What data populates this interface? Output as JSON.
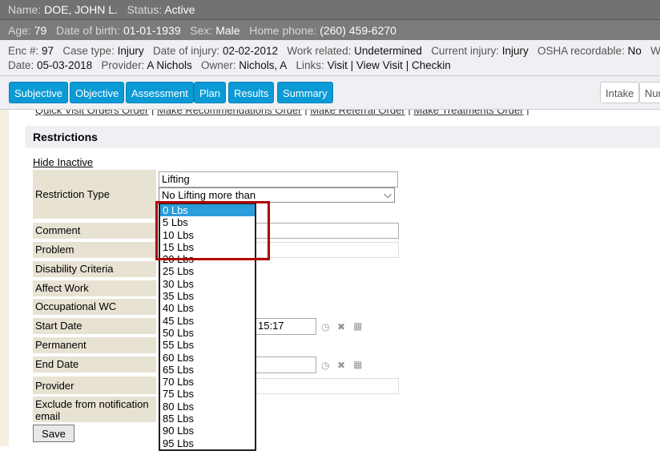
{
  "patient": {
    "name_label": "Name:",
    "name": "DOE, JOHN L.",
    "status_label": "Status:",
    "status": "Active",
    "age_label": "Age:",
    "age": "79",
    "dob_label": "Date of birth:",
    "dob": "01-01-1939",
    "sex_label": "Sex:",
    "sex": "Male",
    "phone_label": "Home phone:",
    "phone": "(260) 459-6270"
  },
  "encounter": {
    "enc_label": "Enc #:",
    "enc": "97",
    "case_label": "Case type:",
    "case": "Injury",
    "doi_label": "Date of injury:",
    "doi": "02-02-2012",
    "work_label": "Work related:",
    "work": "Undetermined",
    "cur_label": "Current injury:",
    "cur": "Injury",
    "osha_label": "OSHA recordable:",
    "osha": "No",
    "wc_label": "WC s",
    "date_label": "Date:",
    "date": "05-03-2018",
    "prov_label": "Provider:",
    "prov": "A Nichols",
    "owner_label": "Owner:",
    "owner": "Nichols, A",
    "links_label": "Links:",
    "links": [
      "Visit",
      "View Visit",
      "Checkin"
    ]
  },
  "tabs": [
    "Subjective",
    "Objective",
    "Assessment",
    "Plan",
    "Results",
    "Summary"
  ],
  "right_buttons": [
    "Intake",
    "Nur"
  ],
  "order_links": [
    "Quick Visit Orders Order",
    "Make Recommendations Order",
    "Make Referral Order",
    "Make Treatments Order"
  ],
  "section_title": "Restrictions",
  "hide_inactive": "Hide Inactive",
  "fields": {
    "restriction_type": "Restriction Type",
    "comment": "Comment",
    "problem": "Problem",
    "disability": "Disability Criteria",
    "affect": "Affect Work",
    "occupational": "Occupational WC",
    "start": "Start Date",
    "permanent": "Permanent",
    "end": "End Date",
    "provider": "Provider",
    "exclude": "Exclude from notification email"
  },
  "values": {
    "restriction_text": "Lifting",
    "restriction_select": "No Lifting more than",
    "start_time": "15:17"
  },
  "dropdown_options": [
    "0 Lbs",
    "5 Lbs",
    "10 Lbs",
    "15 Lbs",
    "20 Lbs",
    "25 Lbs",
    "30 Lbs",
    "35 Lbs",
    "40 Lbs",
    "45 Lbs",
    "50 Lbs",
    "55 Lbs",
    "60 Lbs",
    "65 Lbs",
    "70 Lbs",
    "75 Lbs",
    "80 Lbs",
    "85 Lbs",
    "90 Lbs",
    "95 Lbs"
  ],
  "selected_option": "0 Lbs",
  "save": "Save",
  "colors": {
    "tab": "#0a9ad6",
    "highlight": "#b00000",
    "label_bg": "#e8e2d3"
  }
}
